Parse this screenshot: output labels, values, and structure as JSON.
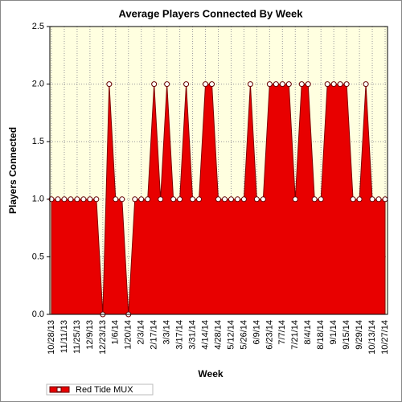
{
  "chart_data": {
    "type": "area",
    "title": "Average Players Connected By Week",
    "x_label": "Week",
    "y_label": "Players Connected",
    "categories": [
      "10/28/13",
      null,
      "11/11/13",
      null,
      "11/25/13",
      null,
      "12/9/13",
      null,
      "12/23/13",
      null,
      "1/6/14",
      null,
      "1/20/14",
      null,
      "2/3/14",
      null,
      "2/17/14",
      null,
      "3/3/14",
      null,
      "3/17/14",
      null,
      "3/31/14",
      null,
      "4/14/14",
      null,
      "4/28/14",
      null,
      "5/12/14",
      null,
      "5/26/14",
      null,
      "6/9/14",
      null,
      "6/23/14",
      null,
      "7/7/14",
      null,
      "7/21/14",
      null,
      "8/4/14",
      null,
      "8/18/14",
      null,
      "9/1/14",
      null,
      "9/15/14",
      null,
      "9/29/14",
      null,
      "10/13/14",
      null,
      "10/27/14"
    ],
    "series": [
      {
        "name": "Red Tide MUX",
        "color": "#e80000",
        "values": [
          1,
          1,
          1,
          1,
          1,
          1,
          1,
          1,
          0,
          2,
          1,
          1,
          0,
          1,
          1,
          1,
          2,
          1,
          2,
          1,
          1,
          2,
          1,
          1,
          2,
          2,
          1,
          1,
          1,
          1,
          1,
          2,
          1,
          1,
          2,
          2,
          2,
          2,
          1,
          2,
          2,
          1,
          1,
          2,
          2,
          2,
          2,
          1,
          1,
          2,
          1,
          1,
          1
        ]
      }
    ],
    "ylim": [
      0,
      2.5
    ],
    "yticks": [
      {
        "value": 0,
        "label": "0.0"
      },
      {
        "value": 0.5,
        "label": "0.5"
      },
      {
        "value": 1,
        "label": "1.0"
      },
      {
        "value": 1.5,
        "label": "1.5"
      },
      {
        "value": 2,
        "label": "2.0"
      },
      {
        "value": 2.5,
        "label": "2.5"
      }
    ],
    "grid": true
  }
}
